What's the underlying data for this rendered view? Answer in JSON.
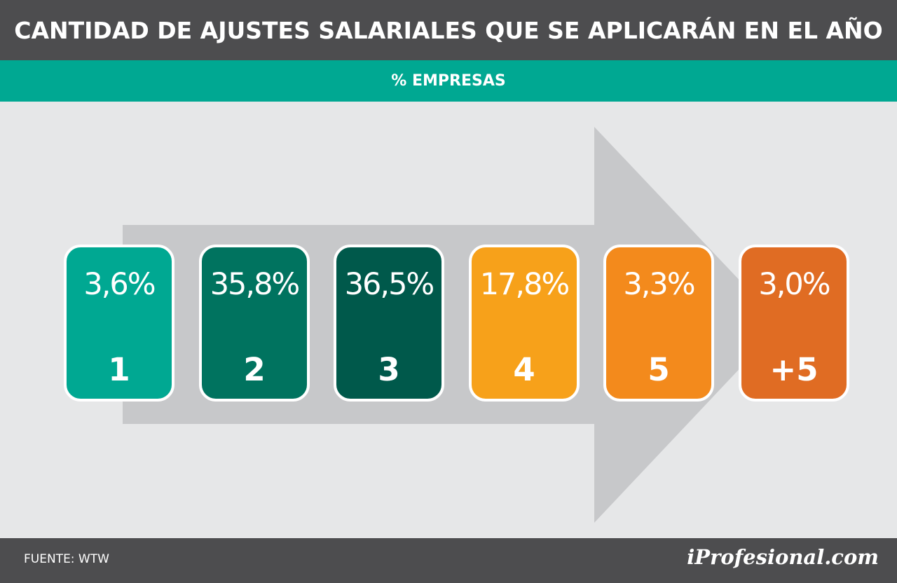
{
  "header": {
    "title": "CANTIDAD DE AJUSTES SALARIALES QUE SE APLICARÁN EN EL AÑO",
    "subtitle": "% EMPRESAS"
  },
  "chart_data": {
    "type": "bar",
    "categories": [
      "1",
      "2",
      "3",
      "4",
      "5",
      "+5"
    ],
    "values": [
      3.6,
      35.8,
      36.5,
      17.8,
      3.3,
      3.0
    ],
    "value_labels": [
      "3,6%",
      "35,8%",
      "36,5%",
      "17,8%",
      "3,3%",
      "3,0%"
    ],
    "colors": [
      "#00a892",
      "#00735f",
      "#00594b",
      "#f7a11a",
      "#f38a1c",
      "#e06c23"
    ],
    "arrow_color": "#c7c8ca",
    "card_border_color": "#ffffff"
  },
  "footer": {
    "source": "FUENTE: WTW",
    "logo": "iProfesional.com"
  }
}
